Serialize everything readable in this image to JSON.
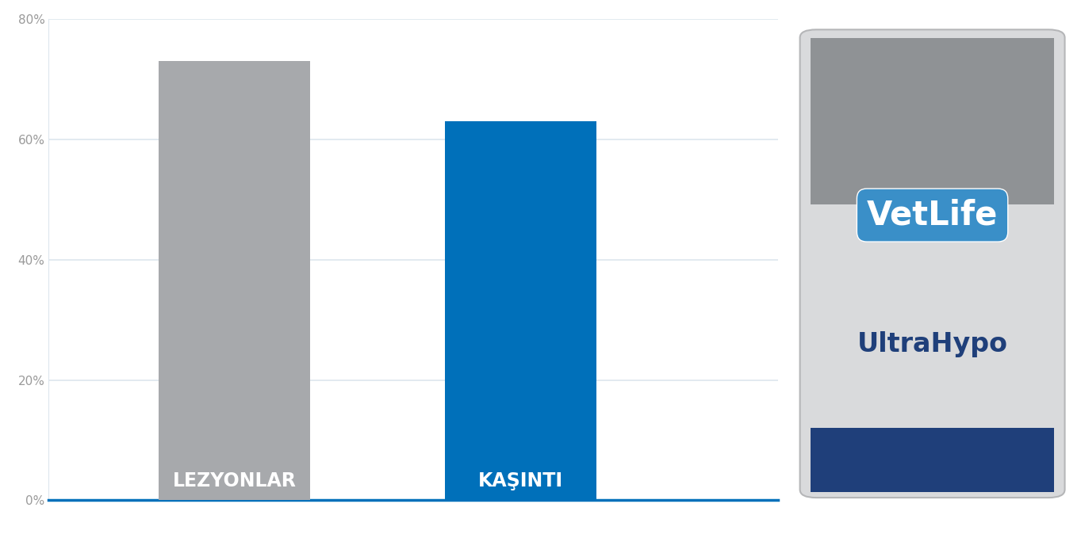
{
  "chart_data": {
    "type": "bar",
    "categories": [
      "LEZYONLAR",
      "KAŞINTI"
    ],
    "values": [
      73,
      63
    ],
    "colors": [
      "#a7a9ac",
      "#0070ba"
    ],
    "ylim": [
      0,
      80
    ],
    "yticks": [
      {
        "value": 0,
        "label": "0%"
      },
      {
        "value": 20,
        "label": "20%"
      },
      {
        "value": 40,
        "label": "40%"
      },
      {
        "value": 60,
        "label": "60%"
      },
      {
        "value": 80,
        "label": "80%"
      }
    ],
    "grid": true,
    "tick_labels": "y",
    "annotations": [
      "VetLife",
      "UltraHypo"
    ]
  }
}
